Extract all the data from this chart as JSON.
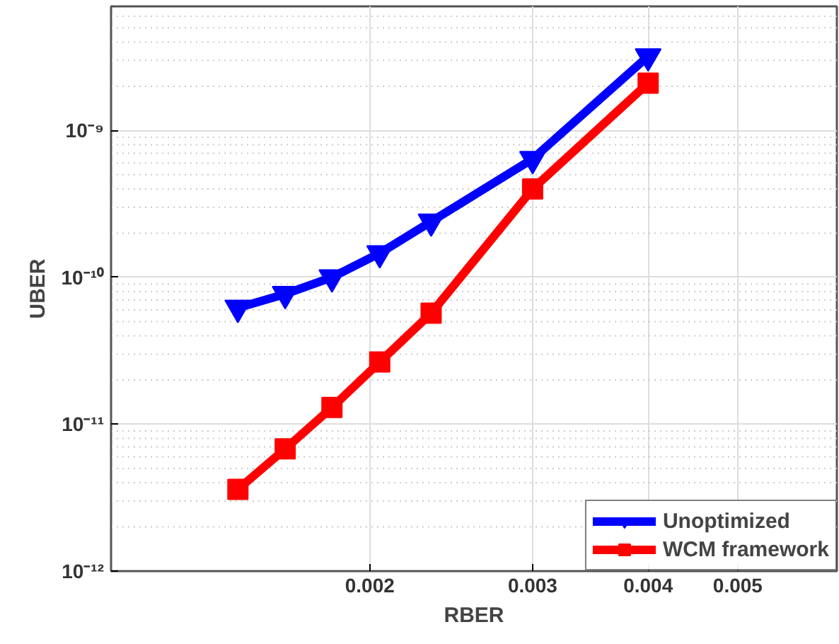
{
  "chart_data": {
    "type": "line",
    "xlabel": "RBER",
    "ylabel": "UBER",
    "log": "xy",
    "grid": true,
    "legend": "bottom right",
    "line_style": "solid",
    "x": [
      0.00144,
      0.00162,
      0.00182,
      0.00205,
      0.00233,
      0.003,
      0.004
    ],
    "series": [
      {
        "name": "Unoptimized",
        "color": "#0000ff",
        "marker": "triangle",
        "values": [
          6.2e-11,
          7.7e-11,
          1e-10,
          1.46e-10,
          2.4e-10,
          6.4e-10,
          3.2e-09
        ]
      },
      {
        "name": "WCM framework",
        "color": "#ff0000",
        "marker": "square",
        "values": [
          3.6e-12,
          6.8e-12,
          1.3e-11,
          2.65e-11,
          5.7e-11,
          4e-10,
          2.1e-09
        ]
      }
    ],
    "xlim": [
      0.00105,
      0.0064
    ],
    "ylim": [
      1e-12,
      7e-09
    ],
    "xticks": [
      0.002,
      0.003,
      0.004,
      0.005
    ],
    "yticks": [
      {
        "value": 1e-12,
        "label": "10⁻¹²"
      },
      {
        "value": 1e-11,
        "label": "10⁻¹¹"
      },
      {
        "value": 1e-10,
        "label": "10⁻¹⁰"
      },
      {
        "value": 1e-09,
        "label": "10⁻⁹"
      }
    ]
  }
}
